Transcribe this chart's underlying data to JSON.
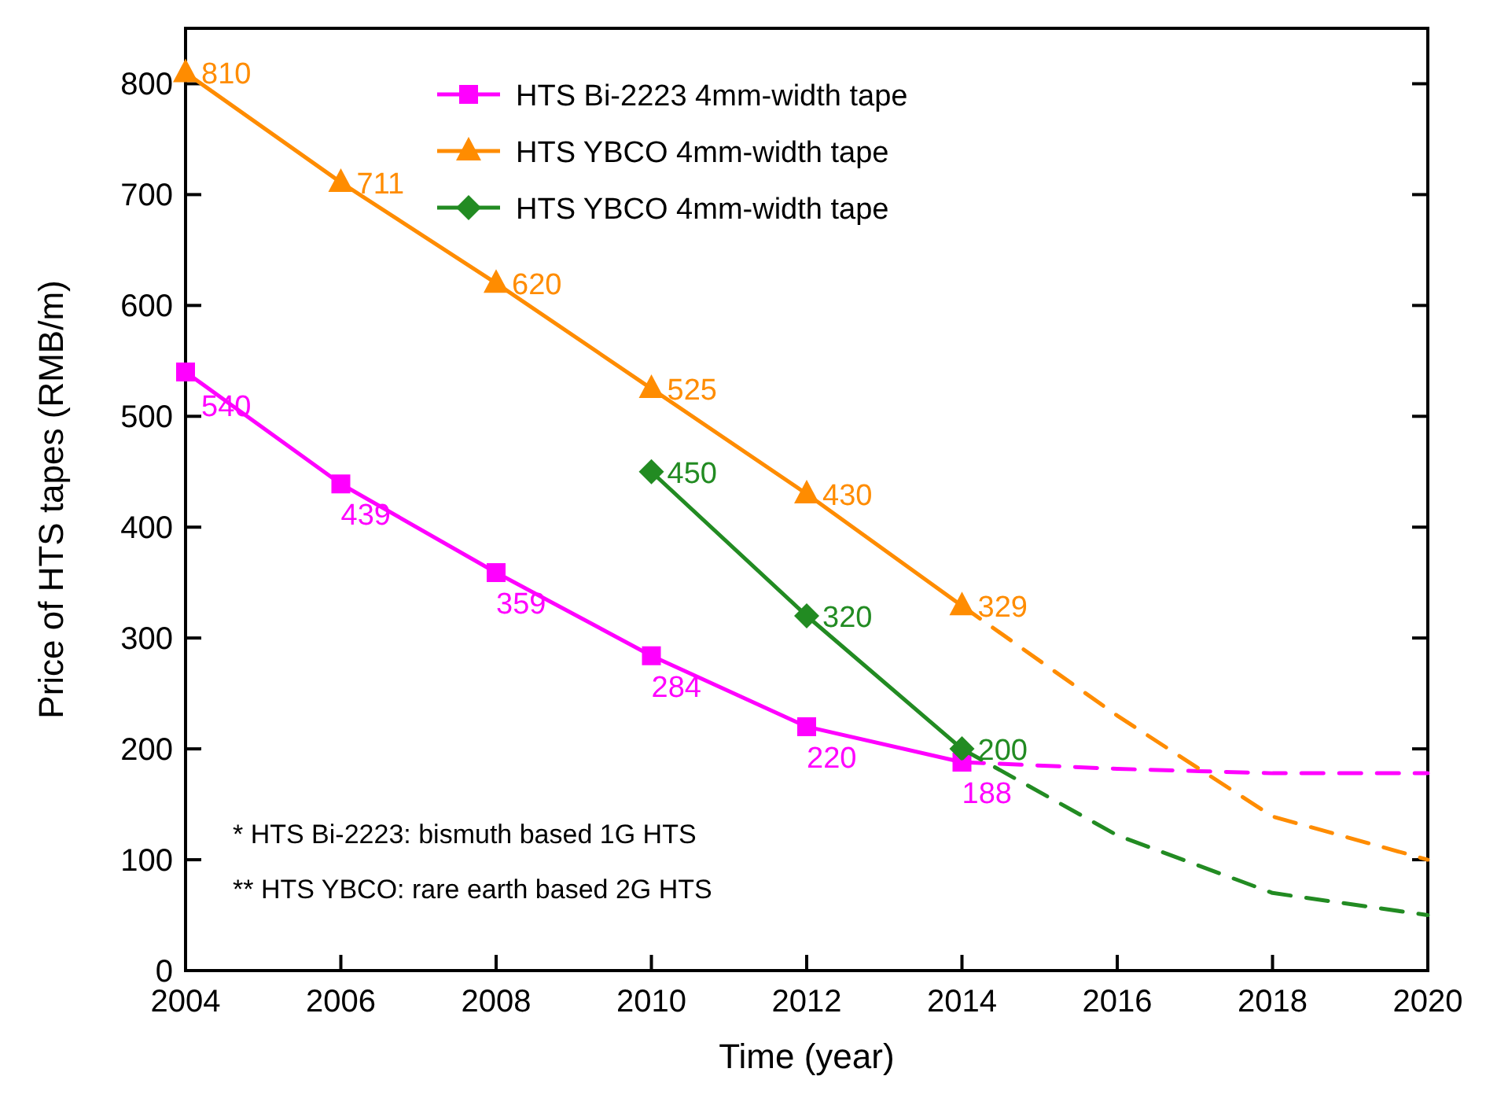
{
  "chart_data": {
    "type": "line",
    "xlabel": "Time (year)",
    "ylabel": "Price of HTS tapes (RMB/m)",
    "xlim": [
      2004,
      2020
    ],
    "xticks": [
      2004,
      2006,
      2008,
      2010,
      2012,
      2014,
      2016,
      2018,
      2020
    ],
    "ylim": [
      0,
      850
    ],
    "yticks": [
      0,
      100,
      200,
      300,
      400,
      500,
      600,
      700,
      800
    ],
    "grid": false,
    "legend": "top",
    "series": [
      {
        "name": "HTS Bi-2223 4mm-width tape",
        "color": "#ff00ff",
        "marker": "square",
        "line_style": "solid",
        "x": [
          2004,
          2006,
          2008,
          2010,
          2012,
          2014
        ],
        "values": [
          540,
          439,
          359,
          284,
          220,
          188
        ],
        "value_labels": [
          "540",
          "439",
          "359",
          "284",
          "220",
          "188"
        ]
      },
      {
        "name": "HTS YBCO 4mm-width tape",
        "color": "#ff8c00",
        "marker": "triangle",
        "line_style": "solid",
        "x": [
          2004,
          2006,
          2008,
          2010,
          2012,
          2014
        ],
        "values": [
          810,
          711,
          620,
          525,
          430,
          329
        ],
        "value_labels": [
          "810",
          "711",
          "620",
          "525",
          "430",
          "329"
        ]
      },
      {
        "name": "HTS YBCO 4mm-width tape",
        "color": "#228b22",
        "marker": "diamond",
        "line_style": "solid",
        "x": [
          2010,
          2012,
          2014
        ],
        "values": [
          450,
          320,
          200
        ],
        "value_labels": [
          "450",
          "320",
          "200"
        ]
      },
      {
        "color": "#ff00ff",
        "marker": "none",
        "line_style": "dashed",
        "x": [
          2014,
          2016,
          2018,
          2020
        ],
        "values": [
          188,
          182,
          178,
          178
        ]
      },
      {
        "color": "#ff8c00",
        "marker": "none",
        "line_style": "dashed",
        "x": [
          2014,
          2016,
          2018,
          2020
        ],
        "values": [
          329,
          230,
          139,
          100
        ]
      },
      {
        "color": "#228b22",
        "marker": "none",
        "line_style": "dashed",
        "x": [
          2014,
          2016,
          2018,
          2020
        ],
        "values": [
          200,
          122,
          70,
          50
        ]
      }
    ],
    "annotations": [
      "*  HTS Bi-2223: bismuth based 1G HTS",
      "** HTS YBCO: rare earth based 2G HTS"
    ]
  }
}
